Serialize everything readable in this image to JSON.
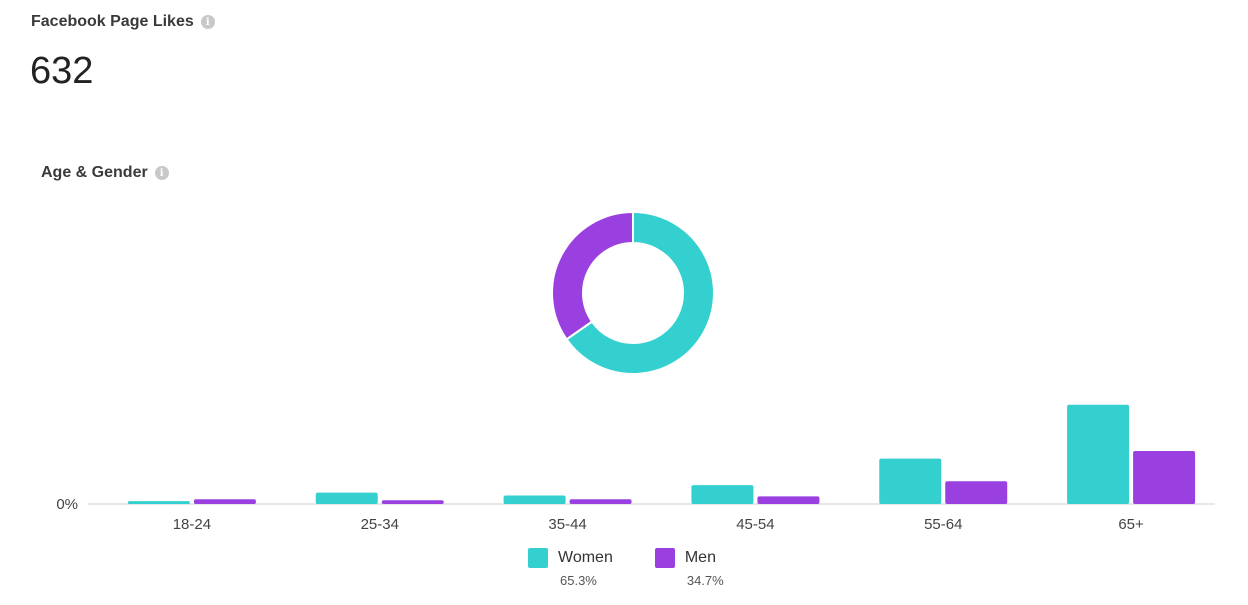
{
  "header": {
    "title": "Facebook Page Likes",
    "value": "632"
  },
  "section": {
    "title": "Age & Gender"
  },
  "icons": {
    "info": "info-icon"
  },
  "colors": {
    "women": "#33d0cf",
    "men": "#9b40e0",
    "axis": "#cfcfcf"
  },
  "chart_data": [
    {
      "type": "pie",
      "donut": true,
      "categories": [
        "Women",
        "Men"
      ],
      "values": [
        65.3,
        34.7
      ]
    },
    {
      "type": "bar",
      "categories": [
        "18-24",
        "25-34",
        "35-44",
        "45-54",
        "55-64",
        "65+"
      ],
      "series": [
        {
          "name": "Women",
          "values": [
            0.3,
            1.2,
            0.9,
            2.0,
            4.8,
            10.5
          ]
        },
        {
          "name": "Men",
          "values": [
            0.5,
            0.4,
            0.5,
            0.8,
            2.4,
            5.6
          ]
        }
      ],
      "ytick": "0%",
      "ylim": [
        0,
        11
      ]
    }
  ],
  "legend": [
    {
      "label": "Women",
      "pct": "65.3%"
    },
    {
      "label": "Men",
      "pct": "34.7%"
    }
  ]
}
